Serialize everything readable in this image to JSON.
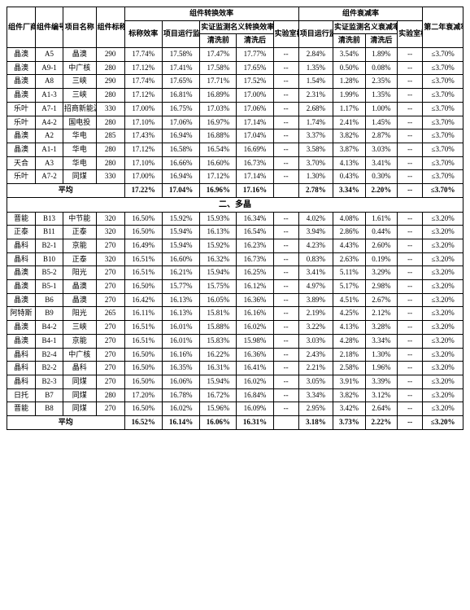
{
  "headers": {
    "h_maker": "组件厂商",
    "h_code": "组件编号",
    "h_proj": "项目名称",
    "h_power": "组件标称功率（W）",
    "h_conv_eff": "组件转换效率",
    "h_decay": "组件衰减率",
    "h_std_eff": "标称效率",
    "h_run_nom": "项目运行监测名义转换效率",
    "h_demo_nom": "实证监测名义转换效率",
    "h_lab_eff": "实验室检测效率",
    "h_run_decay": "项目运行监测名义衰减率",
    "h_demo_decay": "实证监测名义衰减率",
    "h_lab_decay": "实验室检测衰减率",
    "h_y2_req": "第二年衰减率要求",
    "h_before": "清洗前",
    "h_after": "清洗后"
  },
  "section2_label": "二、多晶",
  "avg_label": "平均",
  "s1_rows": [
    {
      "m": "晶澳",
      "c": "A5",
      "p": "晶澳",
      "w": "290",
      "std": "17.74%",
      "run": "17.58%",
      "b": "17.47%",
      "a": "17.77%",
      "lab": "--",
      "rdec": "2.84%",
      "db": "3.54%",
      "da": "1.89%",
      "ldec": "--",
      "req": "≤3.70%"
    },
    {
      "m": "晶澳",
      "c": "A9-1",
      "p": "中广核",
      "w": "280",
      "std": "17.12%",
      "run": "17.41%",
      "b": "17.58%",
      "a": "17.65%",
      "lab": "--",
      "rdec": "1.35%",
      "db": "0.50%",
      "da": "0.08%",
      "ldec": "--",
      "req": "≤3.70%"
    },
    {
      "m": "晶澳",
      "c": "A8",
      "p": "三峡",
      "w": "290",
      "std": "17.74%",
      "run": "17.65%",
      "b": "17.71%",
      "a": "17.52%",
      "lab": "--",
      "rdec": "1.54%",
      "db": "1.28%",
      "da": "2.35%",
      "ldec": "--",
      "req": "≤3.70%"
    },
    {
      "m": "晶澳",
      "c": "A1-3",
      "p": "三峡",
      "w": "280",
      "std": "17.12%",
      "run": "16.81%",
      "b": "16.89%",
      "a": "17.00%",
      "lab": "--",
      "rdec": "2.31%",
      "db": "1.99%",
      "da": "1.35%",
      "ldec": "--",
      "req": "≤3.70%"
    },
    {
      "m": "乐叶",
      "c": "A7-1",
      "p": "招商新能源",
      "w": "330",
      "std": "17.00%",
      "run": "16.75%",
      "b": "17.03%",
      "a": "17.06%",
      "lab": "--",
      "rdec": "2.68%",
      "db": "1.17%",
      "da": "1.00%",
      "ldec": "--",
      "req": "≤3.70%"
    },
    {
      "m": "乐叶",
      "c": "A4-2",
      "p": "国电投",
      "w": "280",
      "std": "17.10%",
      "run": "17.06%",
      "b": "16.97%",
      "a": "17.14%",
      "lab": "--",
      "rdec": "1.74%",
      "db": "2.41%",
      "da": "1.45%",
      "ldec": "--",
      "req": "≤3.70%"
    },
    {
      "m": "晶澳",
      "c": "A2",
      "p": "华电",
      "w": "285",
      "std": "17.43%",
      "run": "16.94%",
      "b": "16.88%",
      "a": "17.04%",
      "lab": "--",
      "rdec": "3.37%",
      "db": "3.82%",
      "da": "2.87%",
      "ldec": "--",
      "req": "≤3.70%"
    },
    {
      "m": "晶澳",
      "c": "A1-1",
      "p": "华电",
      "w": "280",
      "std": "17.12%",
      "run": "16.58%",
      "b": "16.54%",
      "a": "16.69%",
      "lab": "--",
      "rdec": "3.58%",
      "db": "3.87%",
      "da": "3.03%",
      "ldec": "--",
      "req": "≤3.70%"
    },
    {
      "m": "天合",
      "c": "A3",
      "p": "华电",
      "w": "280",
      "std": "17.10%",
      "run": "16.66%",
      "b": "16.60%",
      "a": "16.73%",
      "lab": "--",
      "rdec": "3.70%",
      "db": "4.13%",
      "da": "3.41%",
      "ldec": "--",
      "req": "≤3.70%"
    },
    {
      "m": "乐叶",
      "c": "A7-2",
      "p": "同煤",
      "w": "330",
      "std": "17.00%",
      "run": "16.94%",
      "b": "17.12%",
      "a": "17.14%",
      "lab": "--",
      "rdec": "1.30%",
      "db": "0.43%",
      "da": "0.30%",
      "ldec": "--",
      "req": "≤3.70%"
    }
  ],
  "s1_avg": {
    "std": "17.22%",
    "run": "17.04%",
    "b": "16.96%",
    "a": "17.16%",
    "lab": "",
    "rdec": "2.78%",
    "db": "3.34%",
    "da": "2.20%",
    "ldec": "--",
    "req": "≤3.70%"
  },
  "s2_rows": [
    {
      "m": "晋能",
      "c": "B13",
      "p": "中节能",
      "w": "320",
      "std": "16.50%",
      "run": "15.92%",
      "b": "15.93%",
      "a": "16.34%",
      "lab": "--",
      "rdec": "4.02%",
      "db": "4.08%",
      "da": "1.61%",
      "ldec": "--",
      "req": "≤3.20%"
    },
    {
      "m": "正泰",
      "c": "B11",
      "p": "正泰",
      "w": "320",
      "std": "16.50%",
      "run": "15.94%",
      "b": "16.13%",
      "a": "16.54%",
      "lab": "--",
      "rdec": "3.94%",
      "db": "2.86%",
      "da": "0.44%",
      "ldec": "--",
      "req": "≤3.20%"
    },
    {
      "m": "晶科",
      "c": "B2-1",
      "p": "京能",
      "w": "270",
      "std": "16.49%",
      "run": "15.94%",
      "b": "15.92%",
      "a": "16.23%",
      "lab": "--",
      "rdec": "4.23%",
      "db": "4.43%",
      "da": "2.60%",
      "ldec": "--",
      "req": "≤3.20%"
    },
    {
      "m": "晶科",
      "c": "B10",
      "p": "正泰",
      "w": "320",
      "std": "16.51%",
      "run": "16.60%",
      "b": "16.32%",
      "a": "16.73%",
      "lab": "--",
      "rdec": "0.83%",
      "db": "2.63%",
      "da": "0.19%",
      "ldec": "--",
      "req": "≤3.20%"
    },
    {
      "m": "晶澳",
      "c": "B5-2",
      "p": "阳光",
      "w": "270",
      "std": "16.51%",
      "run": "16.21%",
      "b": "15.94%",
      "a": "16.25%",
      "lab": "--",
      "rdec": "3.41%",
      "db": "5.11%",
      "da": "3.29%",
      "ldec": "--",
      "req": "≤3.20%"
    },
    {
      "m": "晶澳",
      "c": "B5-1",
      "p": "晶澳",
      "w": "270",
      "std": "16.50%",
      "run": "15.77%",
      "b": "15.75%",
      "a": "16.12%",
      "lab": "--",
      "rdec": "4.97%",
      "db": "5.17%",
      "da": "2.98%",
      "ldec": "--",
      "req": "≤3.20%"
    },
    {
      "m": "晶澳",
      "c": "B6",
      "p": "晶澳",
      "w": "270",
      "std": "16.42%",
      "run": "16.13%",
      "b": "16.05%",
      "a": "16.36%",
      "lab": "--",
      "rdec": "3.89%",
      "db": "4.51%",
      "da": "2.67%",
      "ldec": "--",
      "req": "≤3.20%"
    },
    {
      "m": "阿特斯",
      "c": "B9",
      "p": "阳光",
      "w": "265",
      "std": "16.11%",
      "run": "16.13%",
      "b": "15.81%",
      "a": "16.16%",
      "lab": "--",
      "rdec": "2.19%",
      "db": "4.25%",
      "da": "2.12%",
      "ldec": "--",
      "req": "≤3.20%"
    },
    {
      "m": "晶澳",
      "c": "B4-2",
      "p": "三峡",
      "w": "270",
      "std": "16.51%",
      "run": "16.01%",
      "b": "15.88%",
      "a": "16.02%",
      "lab": "--",
      "rdec": "3.22%",
      "db": "4.13%",
      "da": "3.28%",
      "ldec": "--",
      "req": "≤3.20%"
    },
    {
      "m": "晶澳",
      "c": "B4-1",
      "p": "京能",
      "w": "270",
      "std": "16.51%",
      "run": "16.01%",
      "b": "15.83%",
      "a": "15.98%",
      "lab": "--",
      "rdec": "3.03%",
      "db": "4.28%",
      "da": "3.34%",
      "ldec": "--",
      "req": "≤3.20%"
    },
    {
      "m": "晶科",
      "c": "B2-4",
      "p": "中广核",
      "w": "270",
      "std": "16.50%",
      "run": "16.16%",
      "b": "16.22%",
      "a": "16.36%",
      "lab": "--",
      "rdec": "2.43%",
      "db": "2.18%",
      "da": "1.30%",
      "ldec": "--",
      "req": "≤3.20%"
    },
    {
      "m": "晶科",
      "c": "B2-2",
      "p": "晶科",
      "w": "270",
      "std": "16.50%",
      "run": "16.35%",
      "b": "16.31%",
      "a": "16.41%",
      "lab": "--",
      "rdec": "2.21%",
      "db": "2.58%",
      "da": "1.96%",
      "ldec": "--",
      "req": "≤3.20%"
    },
    {
      "m": "晶科",
      "c": "B2-3",
      "p": "同煤",
      "w": "270",
      "std": "16.50%",
      "run": "16.06%",
      "b": "15.94%",
      "a": "16.02%",
      "lab": "--",
      "rdec": "3.05%",
      "db": "3.91%",
      "da": "3.39%",
      "ldec": "--",
      "req": "≤3.20%"
    },
    {
      "m": "日托",
      "c": "B7",
      "p": "同煤",
      "w": "280",
      "std": "17.20%",
      "run": "16.78%",
      "b": "16.72%",
      "a": "16.84%",
      "lab": "--",
      "rdec": "3.34%",
      "db": "3.82%",
      "da": "3.12%",
      "ldec": "--",
      "req": "≤3.20%"
    },
    {
      "m": "晋能",
      "c": "B8",
      "p": "同煤",
      "w": "270",
      "std": "16.50%",
      "run": "16.02%",
      "b": "15.96%",
      "a": "16.09%",
      "lab": "--",
      "rdec": "2.95%",
      "db": "3.42%",
      "da": "2.64%",
      "ldec": "--",
      "req": "≤3.20%"
    }
  ],
  "s2_avg": {
    "std": "16.52%",
    "run": "16.14%",
    "b": "16.06%",
    "a": "16.31%",
    "lab": "",
    "rdec": "3.18%",
    "db": "3.73%",
    "da": "2.22%",
    "ldec": "--",
    "req": "≤3.20%"
  }
}
